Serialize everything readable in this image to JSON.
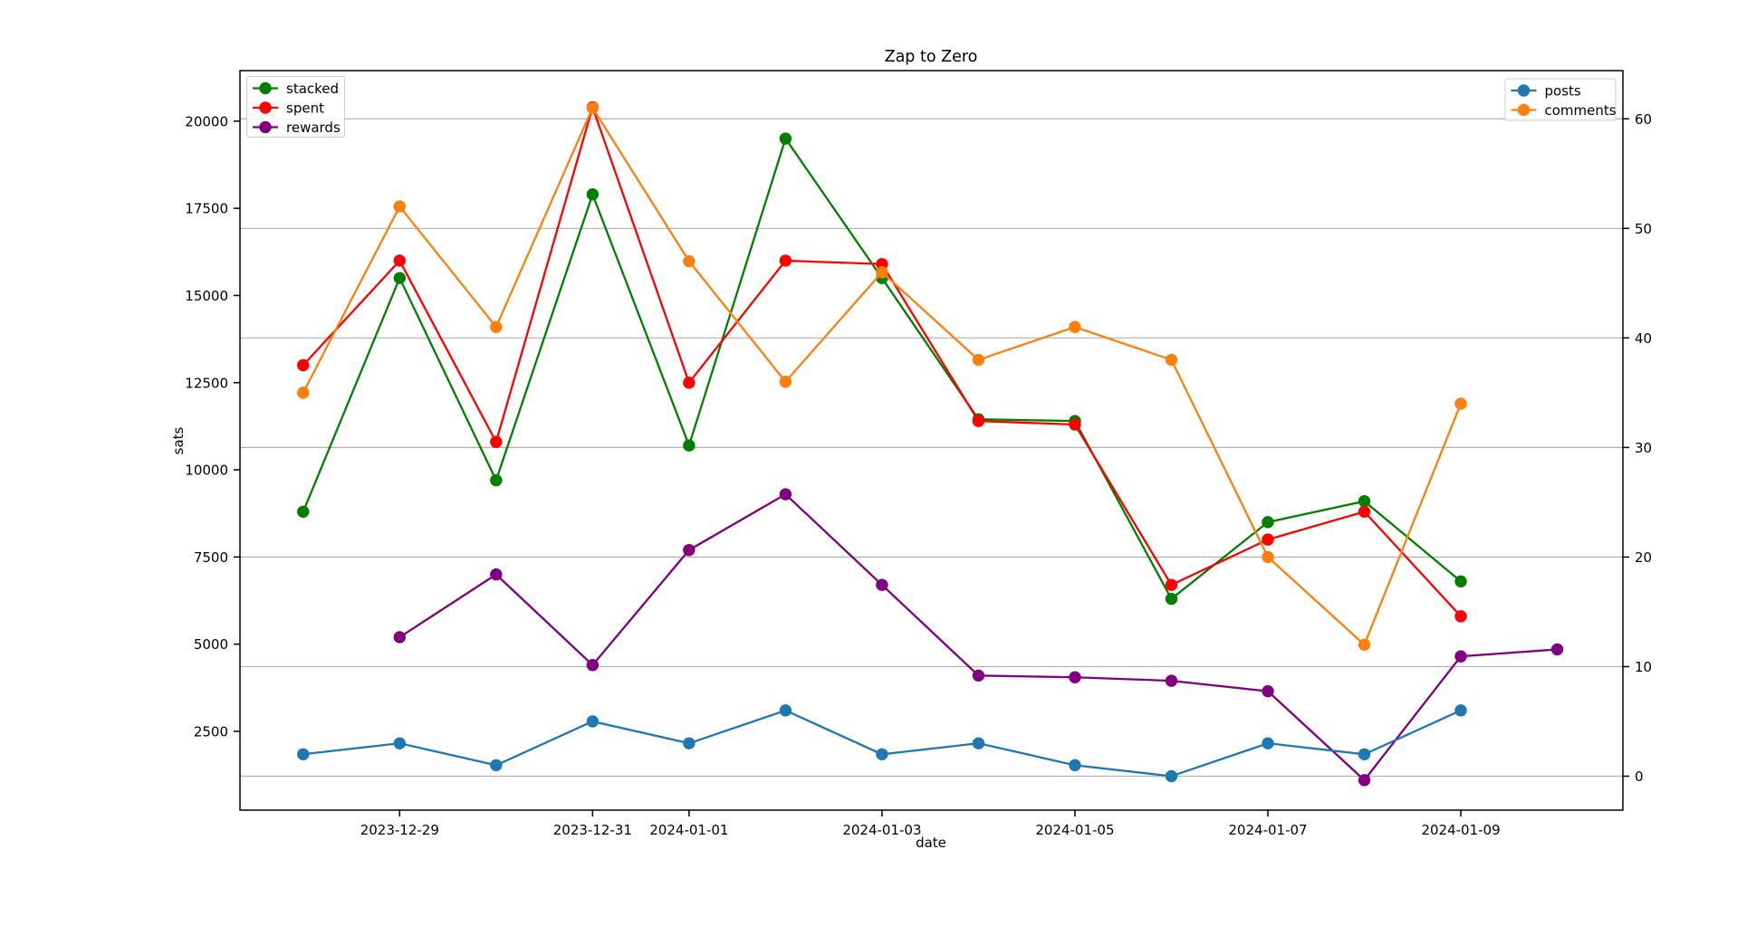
{
  "chart_data": {
    "type": "line",
    "title": "Zap to Zero",
    "xlabel": "date",
    "ylabel_left": "sats",
    "grid": "horizontal-right-axis",
    "x_dates": [
      "2023-12-28",
      "2023-12-29",
      "2023-12-30",
      "2023-12-31",
      "2024-01-01",
      "2024-01-02",
      "2024-01-03",
      "2024-01-04",
      "2024-01-05",
      "2024-01-06",
      "2024-01-07",
      "2024-01-08",
      "2024-01-09",
      "2024-01-10"
    ],
    "x_tick_labels": [
      "2023-12-29",
      "2023-12-31",
      "2024-01-01",
      "2024-01-03",
      "2024-01-05",
      "2024-01-07",
      "2024-01-09"
    ],
    "x_axis": {
      "range_days": [
        -0.655,
        13.68
      ]
    },
    "left_axis": {
      "ticks": [
        2500,
        5000,
        7500,
        10000,
        12500,
        15000,
        17500,
        20000
      ],
      "range": [
        240,
        21450
      ]
    },
    "right_axis": {
      "ticks": [
        0,
        10,
        20,
        30,
        40,
        50,
        60
      ],
      "range": [
        -3.1,
        64.4
      ]
    },
    "legends": {
      "left": {
        "entries": [
          "stacked",
          "spent",
          "rewards"
        ],
        "position": "upper-left"
      },
      "right": {
        "entries": [
          "posts",
          "comments"
        ],
        "position": "upper-right"
      }
    },
    "series": [
      {
        "name": "stacked",
        "axis": "left",
        "color": "#008000",
        "values": [
          8800,
          15500,
          9700,
          17900,
          10700,
          19500,
          15500,
          11450,
          11400,
          6300,
          8500,
          9100,
          6800,
          null
        ]
      },
      {
        "name": "spent",
        "axis": "left",
        "color": "#ff0000",
        "values": [
          13000,
          16000,
          10800,
          20400,
          12500,
          16000,
          15900,
          11400,
          11300,
          6700,
          8000,
          8800,
          5800,
          null
        ]
      },
      {
        "name": "rewards",
        "axis": "left",
        "color": "#800080",
        "values": [
          null,
          5200,
          7000,
          4400,
          7700,
          9300,
          6700,
          4100,
          4050,
          3950,
          3650,
          1100,
          4650,
          4850
        ]
      },
      {
        "name": "posts",
        "axis": "right",
        "color": "#1f77b4",
        "values": [
          2,
          3,
          1,
          5,
          3,
          6,
          2,
          3,
          1,
          0,
          3,
          2,
          6,
          null
        ]
      },
      {
        "name": "comments",
        "axis": "right",
        "color": "#ff7f0e",
        "values": [
          35,
          52,
          41,
          61,
          47,
          36,
          46,
          38,
          41,
          38,
          20,
          12,
          34,
          null
        ]
      }
    ],
    "style": {
      "grid_color": "#b0b0b0",
      "spine_color": "#000000",
      "legend_border_color": "#cccccc",
      "background": "#ffffff"
    }
  }
}
